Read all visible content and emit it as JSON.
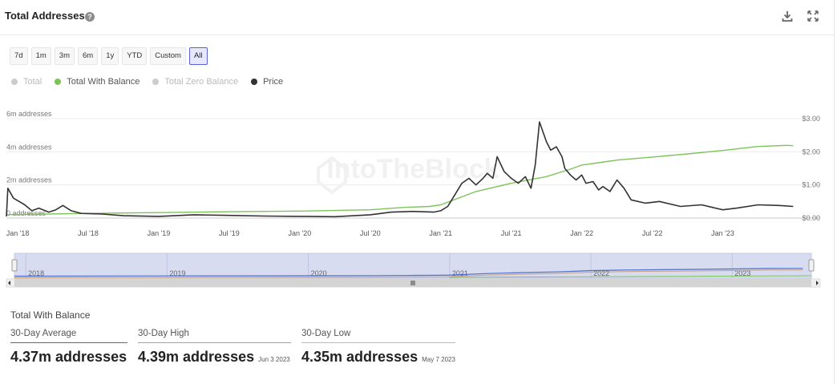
{
  "header": {
    "title": "Total Addresses",
    "help_icon": "?"
  },
  "ranges": [
    {
      "label": "7d",
      "active": false
    },
    {
      "label": "1m",
      "active": false
    },
    {
      "label": "3m",
      "active": false
    },
    {
      "label": "6m",
      "active": false
    },
    {
      "label": "1y",
      "active": false
    },
    {
      "label": "YTD",
      "active": false
    },
    {
      "label": "Custom",
      "active": false
    },
    {
      "label": "All",
      "active": true
    }
  ],
  "legend": [
    {
      "label": "Total",
      "color": "#cccccc",
      "muted": true
    },
    {
      "label": "Total With Balance",
      "color": "#7dc35a",
      "muted": false
    },
    {
      "label": "Total Zero Balance",
      "color": "#cccccc",
      "muted": true
    },
    {
      "label": "Price",
      "color": "#333333",
      "muted": false
    }
  ],
  "chart_data": {
    "type": "line",
    "watermark": "IntoTheBlock",
    "x_tick_labels": [
      "Jan '18",
      "Jul '18",
      "Jan '19",
      "Jul '19",
      "Jan '20",
      "Jul '20",
      "Jan '21",
      "Jul '21",
      "Jan '22",
      "Jul '22",
      "Jan '23"
    ],
    "y_left": {
      "ticks": [
        "0 addresses",
        "2m addresses",
        "4m addresses",
        "6m addresses"
      ],
      "range": [
        0,
        6000000
      ]
    },
    "y_right": {
      "ticks": [
        "$0.00",
        "$1.00",
        "$2.00",
        "$3.00"
      ],
      "range": [
        0,
        3
      ]
    },
    "series": [
      {
        "name": "Total With Balance",
        "axis": "left",
        "color": "#7dc35a",
        "x": [
          2017.92,
          2018.0,
          2018.5,
          2019.0,
          2019.5,
          2020.0,
          2020.5,
          2020.75,
          2020.92,
          2021.0,
          2021.25,
          2021.5,
          2021.75,
          2021.92,
          2022.0,
          2022.25,
          2022.5,
          2022.75,
          2023.0,
          2023.25,
          2023.45,
          2023.5
        ],
        "values": [
          200000,
          220000,
          280000,
          330000,
          380000,
          420000,
          500000,
          650000,
          700000,
          800000,
          1600000,
          2100000,
          2500000,
          2950000,
          3200000,
          3500000,
          3680000,
          3870000,
          4080000,
          4320000,
          4390000,
          4370000
        ]
      },
      {
        "name": "Price",
        "axis": "right",
        "color": "#333333",
        "x": [
          2017.92,
          2017.93,
          2017.97,
          2018.05,
          2018.1,
          2018.15,
          2018.22,
          2018.27,
          2018.32,
          2018.38,
          2018.45,
          2018.6,
          2018.75,
          2019.0,
          2019.25,
          2019.5,
          2019.75,
          2020.0,
          2020.25,
          2020.5,
          2020.65,
          2020.8,
          2020.95,
          2021.0,
          2021.05,
          2021.1,
          2021.15,
          2021.2,
          2021.25,
          2021.3,
          2021.33,
          2021.37,
          2021.4,
          2021.45,
          2021.5,
          2021.55,
          2021.6,
          2021.64,
          2021.67,
          2021.7,
          2021.75,
          2021.78,
          2021.82,
          2021.86,
          2021.88,
          2021.92,
          2021.96,
          2022.0,
          2022.03,
          2022.08,
          2022.12,
          2022.15,
          2022.2,
          2022.25,
          2022.3,
          2022.35,
          2022.45,
          2022.55,
          2022.7,
          2022.85,
          2023.0,
          2023.1,
          2023.25,
          2023.4,
          2023.5
        ],
        "values": [
          0.05,
          0.9,
          0.6,
          0.4,
          0.22,
          0.3,
          0.18,
          0.25,
          0.38,
          0.22,
          0.14,
          0.12,
          0.07,
          0.05,
          0.1,
          0.08,
          0.06,
          0.05,
          0.04,
          0.1,
          0.18,
          0.2,
          0.18,
          0.22,
          0.35,
          0.7,
          1.05,
          1.2,
          1.0,
          1.2,
          1.35,
          1.2,
          1.85,
          1.4,
          1.2,
          1.05,
          1.25,
          0.9,
          1.6,
          2.9,
          2.3,
          2.05,
          2.15,
          1.85,
          1.5,
          1.3,
          1.15,
          1.3,
          1.05,
          1.1,
          0.85,
          0.95,
          0.8,
          1.15,
          0.9,
          0.55,
          0.45,
          0.5,
          0.35,
          0.4,
          0.25,
          0.3,
          0.4,
          0.38,
          0.35
        ]
      }
    ],
    "navigator": {
      "years": [
        "2018",
        "2019",
        "2020",
        "2021",
        "2022",
        "2023"
      ]
    }
  },
  "stats": {
    "title": "Total With Balance",
    "avg": {
      "label": "30-Day Average",
      "value": "4.37m addresses",
      "color": "#4a6fb0"
    },
    "high": {
      "label": "30-Day High",
      "value": "4.39m addresses",
      "date": "Jun 3 2023",
      "color": "#7dc35a"
    },
    "low": {
      "label": "30-Day Low",
      "value": "4.35m addresses",
      "date": "May 7 2023",
      "color": "#e0c030"
    }
  }
}
